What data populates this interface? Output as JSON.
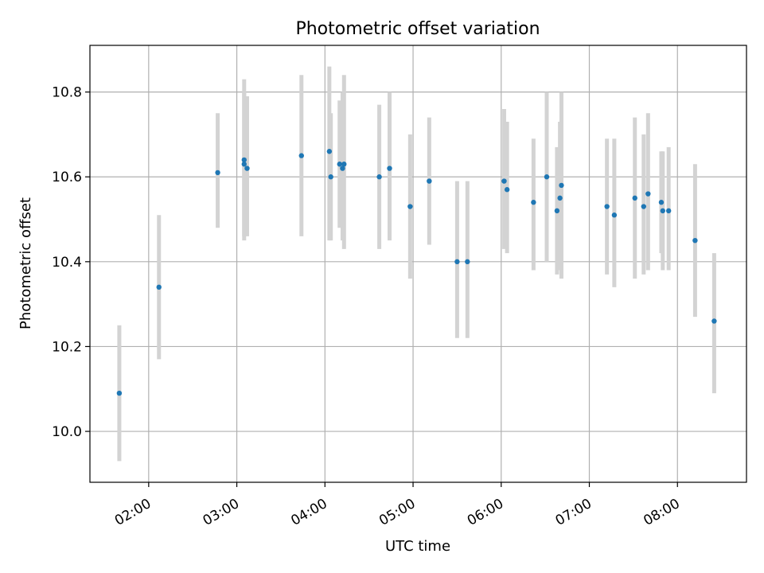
{
  "chart_data": {
    "type": "scatter",
    "title": "Photometric offset variation",
    "xlabel": "UTC time",
    "ylabel": "Photometric offset",
    "x_tick_labels": [
      "02:00",
      "03:00",
      "04:00",
      "05:00",
      "06:00",
      "07:00",
      "08:00"
    ],
    "x_tick_hours": [
      2,
      3,
      4,
      5,
      6,
      7,
      8
    ],
    "y_ticks": [
      "10.0",
      "10.2",
      "10.4",
      "10.6",
      "10.8"
    ],
    "xlim": [
      "01:20",
      "08:47"
    ],
    "ylim": [
      9.88,
      10.91
    ],
    "grid": true,
    "colors": {
      "point": "#1f77b4",
      "errorbar": "#d3d3d3"
    },
    "points": [
      {
        "x": "01:40",
        "y": 10.09,
        "yerr": [
          9.93,
          10.25
        ]
      },
      {
        "x": "02:07",
        "y": 10.34,
        "yerr": [
          10.17,
          10.51
        ]
      },
      {
        "x": "02:47",
        "y": 10.61,
        "yerr": [
          10.48,
          10.75
        ]
      },
      {
        "x": "03:05",
        "y": 10.64,
        "yerr": [
          10.45,
          10.83
        ]
      },
      {
        "x": "03:05",
        "y": 10.63,
        "yerr": [
          10.46,
          10.8
        ]
      },
      {
        "x": "03:07",
        "y": 10.62,
        "yerr": [
          10.46,
          10.79
        ]
      },
      {
        "x": "03:44",
        "y": 10.65,
        "yerr": [
          10.46,
          10.84
        ]
      },
      {
        "x": "04:03",
        "y": 10.66,
        "yerr": [
          10.45,
          10.86
        ]
      },
      {
        "x": "04:04",
        "y": 10.6,
        "yerr": [
          10.45,
          10.75
        ]
      },
      {
        "x": "04:10",
        "y": 10.63,
        "yerr": [
          10.48,
          10.78
        ]
      },
      {
        "x": "04:12",
        "y": 10.62,
        "yerr": [
          10.45,
          10.8
        ]
      },
      {
        "x": "04:13",
        "y": 10.63,
        "yerr": [
          10.43,
          10.84
        ]
      },
      {
        "x": "04:37",
        "y": 10.6,
        "yerr": [
          10.43,
          10.77
        ]
      },
      {
        "x": "04:44",
        "y": 10.62,
        "yerr": [
          10.45,
          10.8
        ]
      },
      {
        "x": "04:58",
        "y": 10.53,
        "yerr": [
          10.36,
          10.7
        ]
      },
      {
        "x": "05:11",
        "y": 10.59,
        "yerr": [
          10.44,
          10.74
        ]
      },
      {
        "x": "05:30",
        "y": 10.4,
        "yerr": [
          10.22,
          10.59
        ]
      },
      {
        "x": "05:37",
        "y": 10.4,
        "yerr": [
          10.22,
          10.59
        ]
      },
      {
        "x": "06:02",
        "y": 10.59,
        "yerr": [
          10.43,
          10.76
        ]
      },
      {
        "x": "06:04",
        "y": 10.57,
        "yerr": [
          10.42,
          10.73
        ]
      },
      {
        "x": "06:22",
        "y": 10.54,
        "yerr": [
          10.38,
          10.69
        ]
      },
      {
        "x": "06:31",
        "y": 10.6,
        "yerr": [
          10.4,
          10.8
        ]
      },
      {
        "x": "06:38",
        "y": 10.52,
        "yerr": [
          10.37,
          10.67
        ]
      },
      {
        "x": "06:40",
        "y": 10.55,
        "yerr": [
          10.38,
          10.73
        ]
      },
      {
        "x": "06:41",
        "y": 10.58,
        "yerr": [
          10.36,
          10.8
        ]
      },
      {
        "x": "07:12",
        "y": 10.53,
        "yerr": [
          10.37,
          10.69
        ]
      },
      {
        "x": "07:17",
        "y": 10.51,
        "yerr": [
          10.34,
          10.69
        ]
      },
      {
        "x": "07:31",
        "y": 10.55,
        "yerr": [
          10.36,
          10.74
        ]
      },
      {
        "x": "07:37",
        "y": 10.53,
        "yerr": [
          10.37,
          10.7
        ]
      },
      {
        "x": "07:40",
        "y": 10.56,
        "yerr": [
          10.38,
          10.75
        ]
      },
      {
        "x": "07:49",
        "y": 10.54,
        "yerr": [
          10.42,
          10.66
        ]
      },
      {
        "x": "07:50",
        "y": 10.52,
        "yerr": [
          10.38,
          10.66
        ]
      },
      {
        "x": "07:54",
        "y": 10.52,
        "yerr": [
          10.38,
          10.67
        ]
      },
      {
        "x": "08:12",
        "y": 10.45,
        "yerr": [
          10.27,
          10.63
        ]
      },
      {
        "x": "08:25",
        "y": 10.26,
        "yerr": [
          10.09,
          10.42
        ]
      }
    ]
  }
}
